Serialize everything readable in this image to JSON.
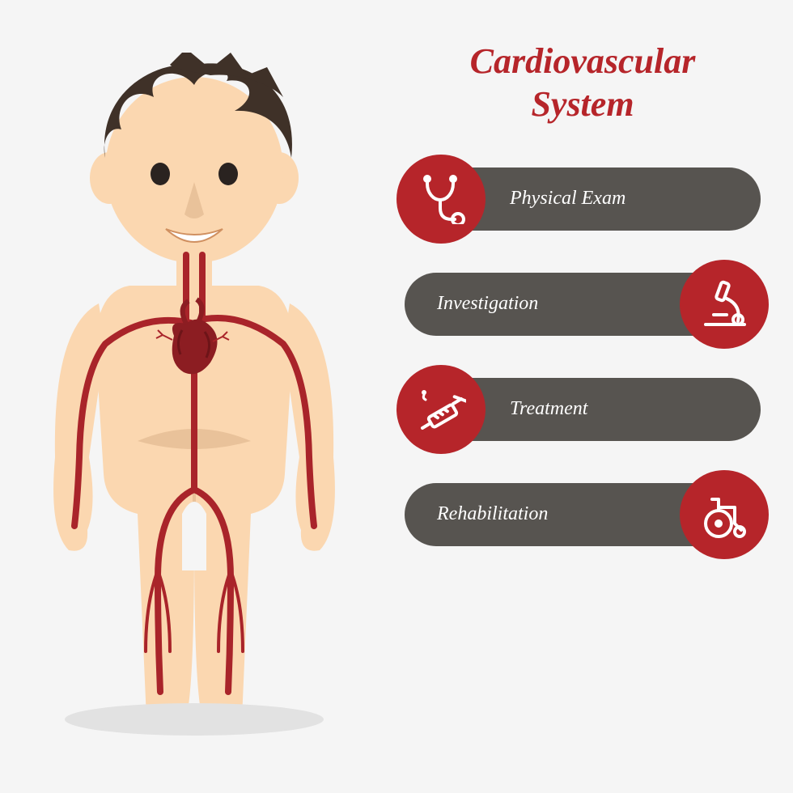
{
  "title_line1": "Cardiovascular",
  "title_line2": "System",
  "title_color": "#b6252a",
  "title_fontsize": 44,
  "bar_color": "#575450",
  "circle_color": "#b6252a",
  "icon_stroke": "#ffffff",
  "label_color": "#ffffff",
  "label_fontsize": 24,
  "background_color": "#f5f5f5",
  "body_skin": "#fbd7b0",
  "body_skin_shadow": "#e9c29a",
  "hair_color": "#3f3128",
  "artery_color": "#a9242a",
  "heart_color": "#8c1d22",
  "items": [
    {
      "label": "Physical Exam",
      "icon": "stethoscope",
      "side": "left"
    },
    {
      "label": "Investigation",
      "icon": "microscope",
      "side": "right"
    },
    {
      "label": "Treatment",
      "icon": "syringe",
      "side": "left"
    },
    {
      "label": "Rehabilitation",
      "icon": "wheelchair",
      "side": "right"
    }
  ]
}
